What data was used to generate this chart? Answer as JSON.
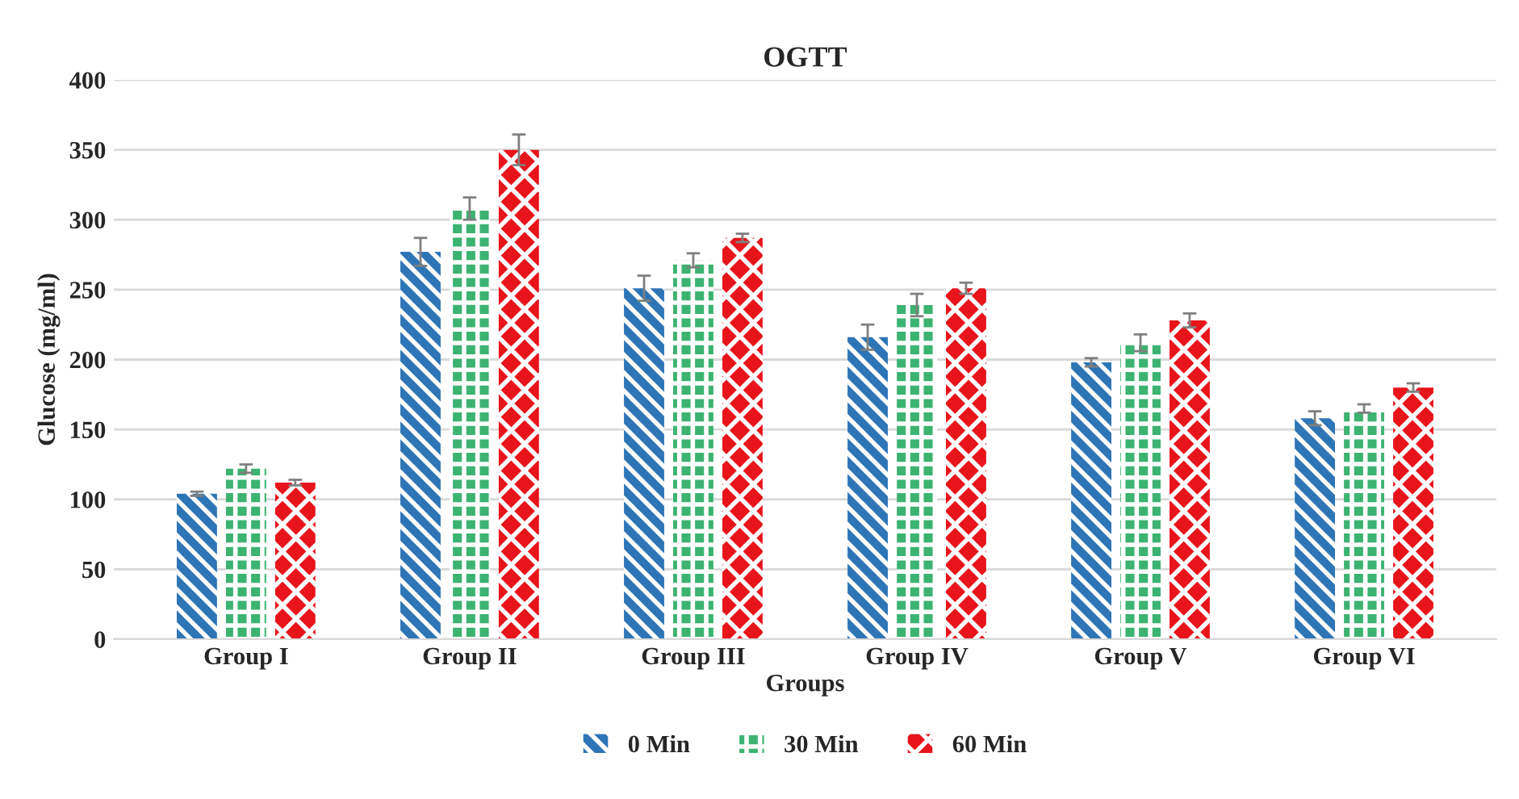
{
  "chart_data": {
    "type": "bar",
    "title": "OGTT",
    "xlabel": "Groups",
    "ylabel": "Glucose (mg/ml)",
    "categories": [
      "Group I",
      "Group II",
      "Group III",
      "Group IV",
      "Group V",
      "Group VI"
    ],
    "series": [
      {
        "name": "0 Min",
        "color": "#2e75b6",
        "values": [
          104,
          277,
          251,
          216,
          198,
          158
        ],
        "errors": [
          1.5,
          10,
          9,
          9,
          3,
          5
        ]
      },
      {
        "name": "30 Min",
        "color": "#3cb371",
        "values": [
          122,
          308,
          271,
          239,
          212,
          165
        ],
        "errors": [
          3,
          8,
          5,
          8,
          6,
          3
        ]
      },
      {
        "name": "60 Min",
        "color": "#e8141b",
        "values": [
          112,
          350,
          287,
          251,
          228,
          180
        ],
        "errors": [
          2,
          11,
          3,
          4,
          5,
          3
        ]
      }
    ],
    "ylim": [
      0,
      400
    ],
    "yticks": [
      0,
      50,
      100,
      150,
      200,
      250,
      300,
      350,
      400
    ],
    "grid": "y",
    "legend": "bottom"
  }
}
